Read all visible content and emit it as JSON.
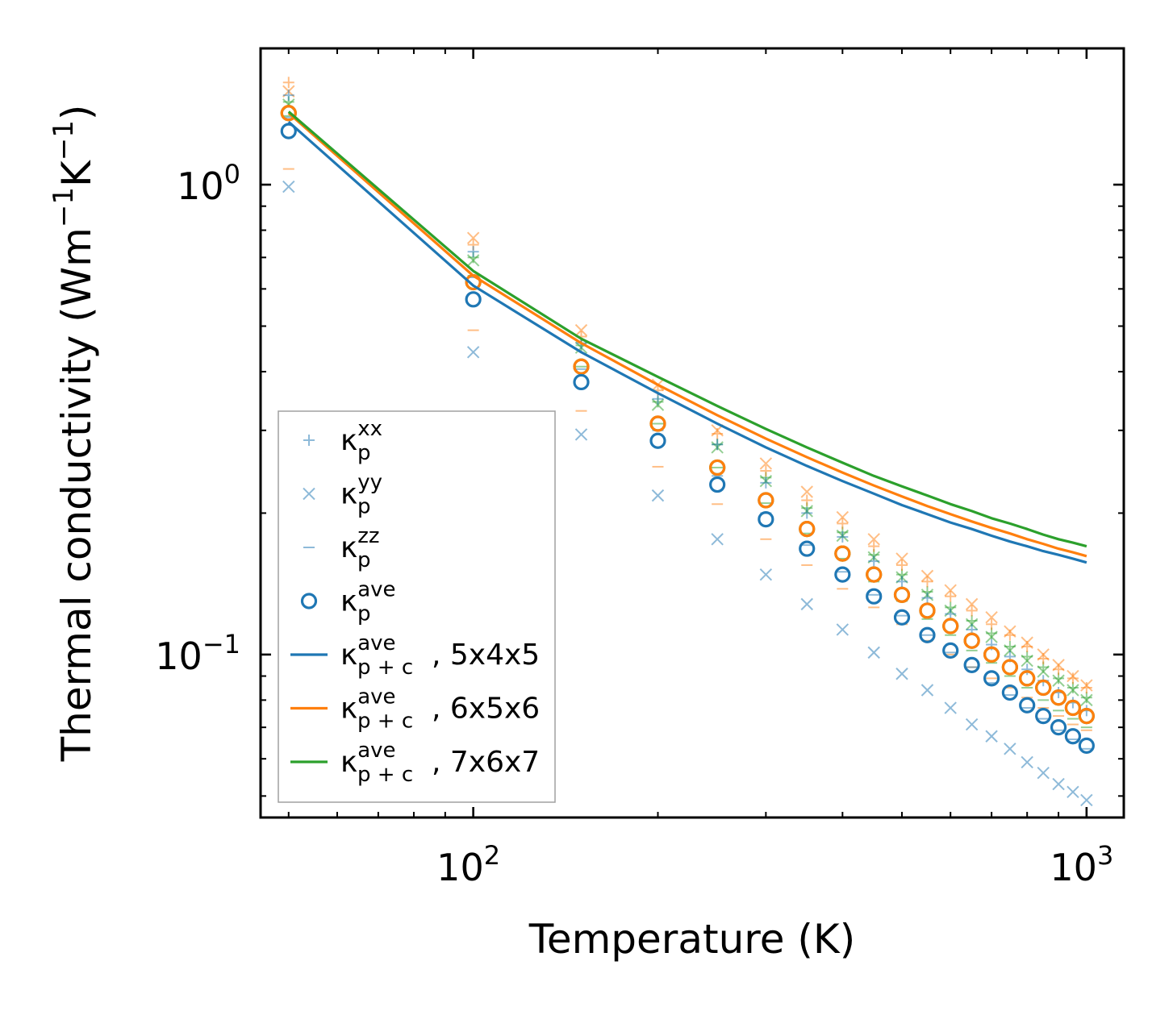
{
  "chart_data": {
    "type": "scatter",
    "xscale": "log",
    "yscale": "log",
    "xlabel": "Temperature (K)",
    "ylabel": "Thermal conductivity (Wm",
    "ylabel_unit_parts": [
      "Thermal conductivity (Wm",
      "−1",
      "K",
      "−1",
      ")"
    ],
    "xlim": [
      45,
      1150
    ],
    "ylim": [
      0.045,
      1.95
    ],
    "x_ticks": [
      {
        "value": 100,
        "base": "10",
        "exp": "2"
      },
      {
        "value": 1000,
        "base": "10",
        "exp": "3"
      }
    ],
    "y_ticks": [
      {
        "value": 1.0,
        "base": "10",
        "exp": "0"
      },
      {
        "value": 0.1,
        "base": "10",
        "exp": "−1"
      }
    ],
    "x": [
      50,
      100,
      150,
      200,
      250,
      300,
      350,
      400,
      450,
      500,
      550,
      600,
      650,
      700,
      750,
      800,
      850,
      900,
      950,
      1000
    ],
    "sets": [
      {
        "supercell": "5x4x5",
        "color": "#1f77b4",
        "kxx": [
          1.55,
          0.72,
          0.46,
          0.35,
          0.28,
          0.232,
          0.2,
          0.178,
          0.158,
          0.143,
          0.132,
          0.122,
          0.113,
          0.105,
          0.099,
          0.093,
          0.088,
          0.083,
          0.079,
          0.076
        ],
        "kyy": [
          0.99,
          0.44,
          0.294,
          0.218,
          0.176,
          0.148,
          0.128,
          0.113,
          0.101,
          0.091,
          0.084,
          0.077,
          0.071,
          0.067,
          0.063,
          0.059,
          0.056,
          0.053,
          0.051,
          0.049
        ],
        "kzz": [
          1.39,
          0.635,
          0.405,
          0.3,
          0.24,
          0.2,
          0.171,
          0.15,
          0.134,
          0.121,
          0.11,
          0.101,
          0.094,
          0.087,
          0.082,
          0.077,
          0.073,
          0.069,
          0.066,
          0.063
        ],
        "kave": [
          1.3,
          0.57,
          0.38,
          0.285,
          0.23,
          0.194,
          0.168,
          0.148,
          0.133,
          0.12,
          0.11,
          0.102,
          0.095,
          0.089,
          0.083,
          0.078,
          0.074,
          0.07,
          0.067,
          0.064
        ],
        "kpc": [
          1.36,
          0.61,
          0.44,
          0.36,
          0.31,
          0.276,
          0.252,
          0.234,
          0.22,
          0.208,
          0.199,
          0.191,
          0.185,
          0.179,
          0.174,
          0.17,
          0.166,
          0.163,
          0.16,
          0.157
        ]
      },
      {
        "supercell": "6x5x6",
        "color": "#ff7f0e",
        "kxx": [
          1.65,
          0.745,
          0.475,
          0.365,
          0.295,
          0.246,
          0.213,
          0.19,
          0.17,
          0.155,
          0.143,
          0.133,
          0.124,
          0.116,
          0.11,
          0.104,
          0.098,
          0.093,
          0.089,
          0.085
        ],
        "kyy": [
          1.58,
          0.77,
          0.49,
          0.375,
          0.3,
          0.255,
          0.222,
          0.196,
          0.176,
          0.16,
          0.147,
          0.137,
          0.128,
          0.12,
          0.112,
          0.106,
          0.1,
          0.095,
          0.09,
          0.086
        ],
        "kzz": [
          1.08,
          0.49,
          0.33,
          0.251,
          0.209,
          0.176,
          0.155,
          0.138,
          0.126,
          0.116,
          0.107,
          0.1,
          0.094,
          0.089,
          0.085,
          0.081,
          0.077,
          0.074,
          0.071,
          0.069
        ],
        "kave": [
          1.42,
          0.62,
          0.41,
          0.31,
          0.25,
          0.213,
          0.185,
          0.164,
          0.148,
          0.134,
          0.124,
          0.115,
          0.107,
          0.1,
          0.094,
          0.089,
          0.085,
          0.081,
          0.077,
          0.074
        ],
        "kpc": [
          1.42,
          0.64,
          0.46,
          0.375,
          0.323,
          0.288,
          0.263,
          0.244,
          0.229,
          0.217,
          0.207,
          0.199,
          0.192,
          0.186,
          0.181,
          0.176,
          0.172,
          0.168,
          0.165,
          0.162
        ]
      },
      {
        "supercell": "7x6x7",
        "color": "#2ca02c",
        "kxx": [
          1.5,
          0.7,
          0.455,
          0.345,
          0.28,
          0.238,
          0.205,
          0.182,
          0.163,
          0.148,
          0.136,
          0.126,
          0.118,
          0.111,
          0.104,
          0.099,
          0.094,
          0.089,
          0.085,
          0.081
        ],
        "kyy": [
          1.48,
          0.69,
          0.45,
          0.34,
          0.276,
          0.234,
          0.202,
          0.179,
          0.161,
          0.146,
          0.134,
          0.124,
          0.116,
          0.109,
          0.102,
          0.097,
          0.092,
          0.088,
          0.084,
          0.08
        ],
        "kzz": [
          1.4,
          0.64,
          0.41,
          0.31,
          0.25,
          0.21,
          0.181,
          0.16,
          0.143,
          0.13,
          0.119,
          0.11,
          0.102,
          0.096,
          0.09,
          0.085,
          0.08,
          0.076,
          0.073,
          0.07
        ],
        "kave": [
          1.42,
          0.62,
          0.41,
          0.31,
          0.25,
          0.213,
          0.185,
          0.164,
          0.148,
          0.134,
          0.124,
          0.115,
          0.107,
          0.1,
          0.094,
          0.089,
          0.085,
          0.081,
          0.077,
          0.074
        ],
        "kpc": [
          1.43,
          0.655,
          0.47,
          0.39,
          0.338,
          0.302,
          0.276,
          0.256,
          0.24,
          0.228,
          0.218,
          0.209,
          0.202,
          0.195,
          0.19,
          0.185,
          0.18,
          0.176,
          0.173,
          0.17
        ]
      }
    ],
    "legend": {
      "placement": "lower-left",
      "entries": [
        {
          "marker": "plus",
          "color": "#1f77b4",
          "symbol": "κ",
          "sub": "p",
          "sup": "xx",
          "suffix": ""
        },
        {
          "marker": "cross",
          "color": "#1f77b4",
          "symbol": "κ",
          "sub": "p",
          "sup": "yy",
          "suffix": ""
        },
        {
          "marker": "dash",
          "color": "#1f77b4",
          "symbol": "κ",
          "sub": "p",
          "sup": "zz",
          "suffix": ""
        },
        {
          "marker": "circle",
          "color": "#1f77b4",
          "symbol": "κ",
          "sub": "p",
          "sup": "ave",
          "suffix": ""
        },
        {
          "marker": "line",
          "color": "#1f77b4",
          "symbol": "κ",
          "sub": "p + c",
          "sup": "ave",
          "suffix": ", 5x4x5"
        },
        {
          "marker": "line",
          "color": "#ff7f0e",
          "symbol": "κ",
          "sub": "p + c",
          "sup": "ave",
          "suffix": ", 6x5x6"
        },
        {
          "marker": "line",
          "color": "#2ca02c",
          "symbol": "κ",
          "sub": "p + c",
          "sup": "ave",
          "suffix": ", 7x6x7"
        }
      ]
    }
  }
}
